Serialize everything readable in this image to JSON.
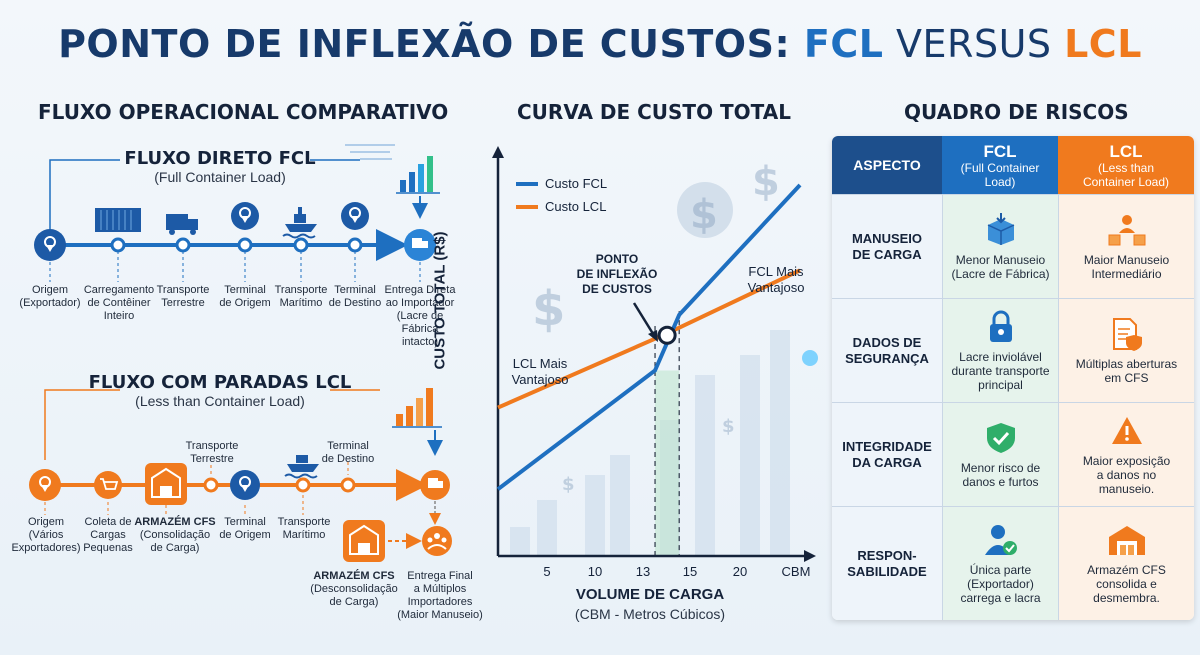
{
  "title": {
    "part1": "PONTO DE INFLEXÃO DE CUSTOS: ",
    "fcl": "FCL",
    "versus": " VERSUS ",
    "lcl": "LCL"
  },
  "sections": {
    "flow": "FLUXO OPERACIONAL COMPARATIVO",
    "curve": "CURVA DE CUSTO TOTAL",
    "risks": "QUADRO DE RISCOS"
  },
  "fcl_flow": {
    "title": "FLUXO DIRETO FCL",
    "subtitle": "(Full Container Load)",
    "steps": [
      {
        "label": "Origem\n(Exportador)"
      },
      {
        "label": "Carregamento\nde Contêiner\nInteiro"
      },
      {
        "label": "Transporte\nTerrestre"
      },
      {
        "label": "Terminal\nde Origem"
      },
      {
        "label": "Transporte\nMarítimo"
      },
      {
        "label": "Terminal\nde Destino"
      },
      {
        "label": "Entrega Direta\nao Importador\n(Lacre de\nFábrica\nintacto)"
      }
    ]
  },
  "lcl_flow": {
    "title": "FLUXO COM PARADAS LCL",
    "subtitle": "(Less than Container Load)",
    "steps": [
      {
        "label": "Origem\n(Vários\nExportadores)"
      },
      {
        "label": "Coleta de\nCargas\nPequenas"
      },
      {
        "label_bold": "ARMAZÉM CFS",
        "label": "(Consolidação\nde Carga)"
      },
      {
        "label": "Transporte\nTerrestre"
      },
      {
        "label": "Terminal\nde Origem"
      },
      {
        "label": "Transporte\nMarítimo"
      },
      {
        "label": "Terminal\nde Destino"
      },
      {
        "label_bold": "ARMAZÉM CFS",
        "label": "(Desconsolidação\nde Carga)"
      },
      {
        "label": "Entrega Final\na Múltiplos\nImportadores\n(Maior Manuseio)"
      }
    ]
  },
  "chart_data": {
    "type": "line",
    "xlabel": "VOLUME DE CARGA",
    "xlabel_sub": "(CBM - Metros Cúbicos)",
    "ylabel": "CUSTO TOTAL (R$)",
    "x_ticks": [
      "5",
      "10",
      "13",
      "15",
      "20",
      "CBM"
    ],
    "legend": "top-left",
    "series": [
      {
        "name": "Custo FCL",
        "color": "#1e6fc0",
        "points": [
          [
            0,
            18
          ],
          [
            13,
            50
          ],
          [
            15,
            65
          ],
          [
            25,
            100
          ]
        ]
      },
      {
        "name": "Custo LCL",
        "color": "#f07a1e",
        "points": [
          [
            0,
            40
          ],
          [
            14,
            60
          ],
          [
            25,
            77
          ]
        ]
      }
    ],
    "inflection_label": "PONTO\nDE INFLEXÃO\nDE CUSTOS",
    "inflection_range": [
      13,
      15
    ],
    "annotations": {
      "lcl": "LCL Mais\nVantajoso",
      "fcl": "FCL Mais\nVantajoso"
    }
  },
  "risk_table": {
    "headers": {
      "aspect": "ASPECTO",
      "fcl": "FCL",
      "fcl_sub": "(Full Container\nLoad)",
      "lcl": "LCL",
      "lcl_sub": "(Less than\nContainer Load)"
    },
    "rows": [
      {
        "aspect": "MANUSEIO\nDE CARGA",
        "fcl": "Menor Manuseio\n(Lacre de Fábrica)",
        "lcl": "Maior Manuseio\nIntermediário"
      },
      {
        "aspect": "DADOS DE\nSEGURANÇA",
        "fcl": "Lacre inviolável\ndurante transporte\nprincipal",
        "lcl": "Múltiplas aberturas\nem CFS"
      },
      {
        "aspect": "INTEGRIDADE\nDA CARGA",
        "fcl": "Menor risco de\ndanos e furtos",
        "lcl": "Maior exposição\na danos no\nmanuseio."
      },
      {
        "aspect": "RESPON-\nSABILIDADE",
        "fcl": "Única parte\n(Exportador)\ncarrega e lacra",
        "lcl": "Armazém CFS\nconsolida e\ndesmembra."
      }
    ]
  }
}
